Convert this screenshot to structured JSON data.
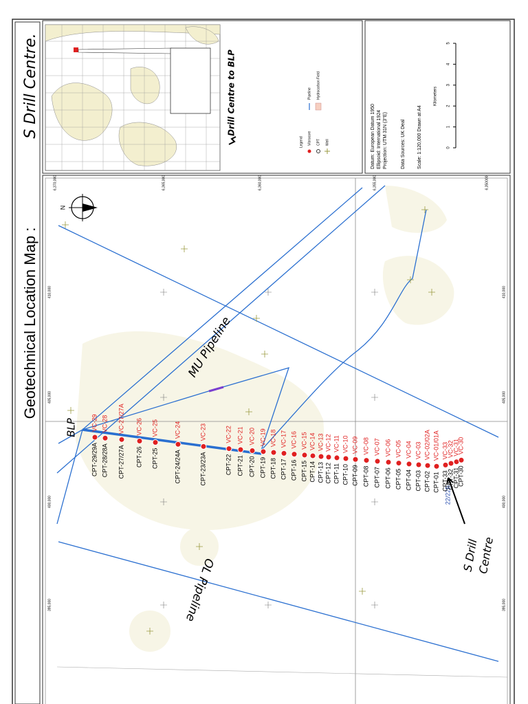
{
  "title": {
    "typed": "Geotechnical Location Map :",
    "handwritten": "S Drill Centre."
  },
  "inset": {
    "label": "Drill Centre to BLP"
  },
  "legend": {
    "title": "Legend",
    "items": [
      "Vibrocore",
      "CPT",
      "Well",
      "Pipeline",
      "Hydrocarbon Field"
    ]
  },
  "info": {
    "lines": [
      "Datum: European Datum 1950",
      "Ellipsoid: International 1924",
      "Projection: UTM 31N (3°E)",
      "Data Sources: UK Deal",
      "Scale: 1:120,000  Drawn at A4"
    ]
  },
  "scale_bar": {
    "label": "Kilometers",
    "ticks": [
      0,
      1,
      2,
      3,
      4,
      5
    ]
  },
  "northings": [
    "6,370,000",
    "6,365,000",
    "6,360,000",
    "6,355,000",
    "6,350000"
  ],
  "eastings": [
    "410,000",
    "405,000",
    "400,000",
    "395,000"
  ],
  "north": "N",
  "annotations": {
    "blp": "BLP",
    "mu_pipeline": "MU Pipeline",
    "ol_pipeline": "OL Pipeline",
    "s_drill_centre": [
      "S Drill",
      "Centre"
    ],
    "blue_label": "22/22B"
  },
  "stations": [
    {
      "vc": "VC-29",
      "cpt": "CPT-29/29A"
    },
    {
      "vc": "VC-28",
      "cpt": "CPT-28/28A"
    },
    {
      "vc": "VC-27/27A",
      "cpt": "CPT-27/27A"
    },
    {
      "vc": "VC-26",
      "cpt": "CPT-26"
    },
    {
      "vc": "VC-25",
      "cpt": "CPT-25"
    },
    {
      "vc": "VC-24",
      "cpt": "CPT-24/24A"
    },
    {
      "vc": "VC-23",
      "cpt": "CPT-23/23A"
    },
    {
      "vc": "VC-22",
      "cpt": "CPT-22"
    },
    {
      "vc": "VC-21",
      "cpt": "CPT-21"
    },
    {
      "vc": "VC-20",
      "cpt": "CPT-20"
    },
    {
      "vc": "VC-19",
      "cpt": "CPT-19"
    },
    {
      "vc": "VC-18",
      "cpt": "CPT-18"
    },
    {
      "vc": "VC-17",
      "cpt": "CPT-17"
    },
    {
      "vc": "VC-16",
      "cpt": "CPT-16"
    },
    {
      "vc": "VC-15",
      "cpt": "CPT-15"
    },
    {
      "vc": "VC-14",
      "cpt": "CPT-14"
    },
    {
      "vc": "VC-13",
      "cpt": "CPT-13"
    },
    {
      "vc": "VC-12",
      "cpt": "CPT-12"
    },
    {
      "vc": "VC-11",
      "cpt": "CPT-11"
    },
    {
      "vc": "VC-10",
      "cpt": "CPT-10"
    },
    {
      "vc": "VC-09",
      "cpt": "CPT-09"
    },
    {
      "vc": "VC-08",
      "cpt": "CPT-08"
    },
    {
      "vc": "VC-07",
      "cpt": "CPT-07"
    },
    {
      "vc": "VC-06",
      "cpt": "CPT-06"
    },
    {
      "vc": "VC-05",
      "cpt": "CPT-05"
    },
    {
      "vc": "VC-04",
      "cpt": "CPT-04"
    },
    {
      "vc": "VC-03",
      "cpt": "CPT-03"
    },
    {
      "vc": "VC-02/02A",
      "cpt": "CPT-02"
    },
    {
      "vc": "VC-01/01A",
      "cpt": "CPT-01"
    },
    {
      "vc": "VC-33",
      "cpt": "CPT-33"
    },
    {
      "vc": "VC-32",
      "cpt": "CPT-32"
    },
    {
      "vc": "VC-31",
      "cpt": "CPT-31"
    },
    {
      "vc": "VC-30",
      "cpt": "CPT-30"
    }
  ]
}
